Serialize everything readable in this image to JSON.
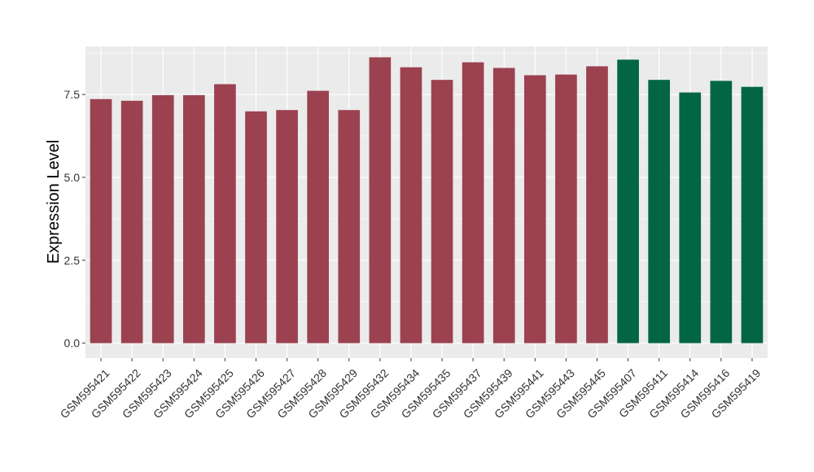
{
  "chart_data": {
    "type": "bar",
    "xlabel": "",
    "ylabel": "Expression Level",
    "ylim": [
      -0.45,
      8.95
    ],
    "yticks": [
      0.0,
      2.5,
      5.0,
      7.5
    ],
    "ytick_labels": [
      "0.0",
      "2.5",
      "5.0",
      "7.5"
    ],
    "grid": true,
    "panel_background": "#ebebeb",
    "colors": {
      "group1": "#9b4150",
      "group2": "#026644"
    },
    "categories": [
      "GSM595421",
      "GSM595422",
      "GSM595423",
      "GSM595424",
      "GSM595425",
      "GSM595426",
      "GSM595427",
      "GSM595428",
      "GSM595429",
      "GSM595432",
      "GSM595434",
      "GSM595435",
      "GSM595437",
      "GSM595439",
      "GSM595441",
      "GSM595443",
      "GSM595445",
      "GSM595407",
      "GSM595411",
      "GSM595414",
      "GSM595416",
      "GSM595419"
    ],
    "values": [
      7.36,
      7.31,
      7.48,
      7.48,
      7.81,
      6.99,
      7.03,
      7.61,
      7.03,
      8.62,
      8.32,
      7.94,
      8.47,
      8.3,
      8.08,
      8.1,
      8.35,
      8.55,
      7.94,
      7.56,
      7.91,
      7.73
    ],
    "groups": [
      "group1",
      "group1",
      "group1",
      "group1",
      "group1",
      "group1",
      "group1",
      "group1",
      "group1",
      "group1",
      "group1",
      "group1",
      "group1",
      "group1",
      "group1",
      "group1",
      "group1",
      "group2",
      "group2",
      "group2",
      "group2",
      "group2"
    ]
  }
}
